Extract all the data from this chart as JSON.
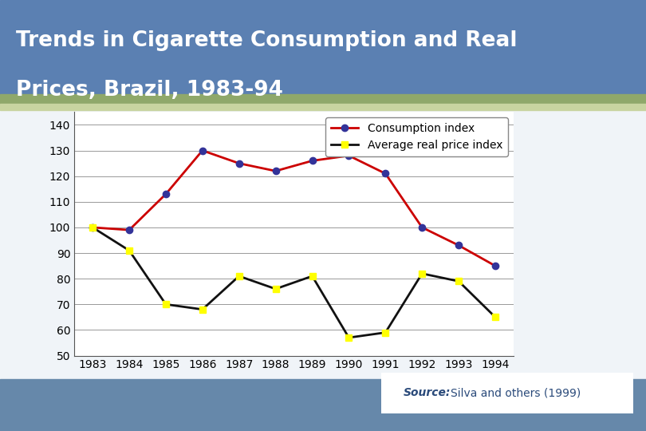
{
  "years": [
    1983,
    1984,
    1985,
    1986,
    1987,
    1988,
    1989,
    1990,
    1991,
    1992,
    1993,
    1994
  ],
  "consumption_index": [
    100,
    99,
    113,
    130,
    125,
    122,
    126,
    128,
    121,
    100,
    93,
    85
  ],
  "price_index": [
    100,
    91,
    70,
    68,
    81,
    76,
    81,
    57,
    59,
    82,
    79,
    65
  ],
  "title_line1": "Trends in Cigarette Consumption and Real",
  "title_line2": "Prices, Brazil, 1983-94",
  "consumption_label": "Consumption index",
  "price_label": "Average real price index",
  "source_italic": "Source:",
  "source_normal": " Silva and others (1999)",
  "ylim": [
    50,
    145
  ],
  "yticks": [
    50,
    60,
    70,
    80,
    90,
    100,
    110,
    120,
    130,
    140
  ],
  "consumption_line_color": "#cc0000",
  "consumption_marker_color": "#333399",
  "price_line_color": "#111111",
  "price_marker_color": "#ffff00",
  "header_color": "#5b80b2",
  "footer_color": "#6688aa",
  "plot_bg": "#ffffff",
  "title_color": "#ffffff",
  "title_fontsize": 19,
  "axis_fontsize": 10,
  "legend_fontsize": 10,
  "source_color": "#2a4a7a"
}
